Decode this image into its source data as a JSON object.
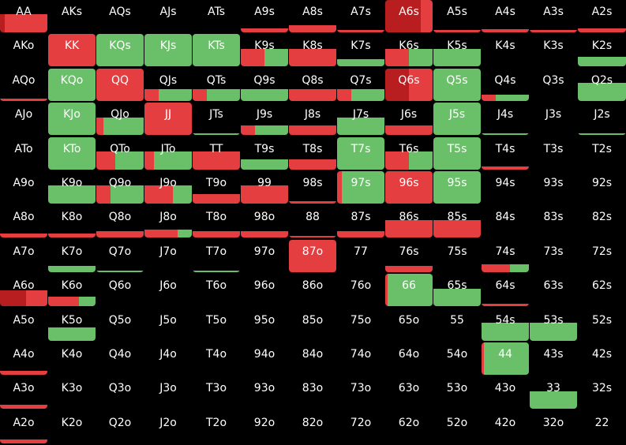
{
  "colors": {
    "call": "#6abf69",
    "raise": "#e53e40",
    "raise_dark": "#b81e20",
    "background": "#000000",
    "text": "#ffffff"
  },
  "grid": {
    "rows": [
      [
        "AA",
        "AKs",
        "AQs",
        "AJs",
        "ATs",
        "A9s",
        "A8s",
        "A7s",
        "A6s",
        "A5s",
        "A4s",
        "A3s",
        "A2s"
      ],
      [
        "AKo",
        "KK",
        "KQs",
        "KJs",
        "KTs",
        "K9s",
        "K8s",
        "K7s",
        "K6s",
        "K5s",
        "K4s",
        "K3s",
        "K2s"
      ],
      [
        "AQo",
        "KQo",
        "QQ",
        "QJs",
        "QTs",
        "Q9s",
        "Q8s",
        "Q7s",
        "Q6s",
        "Q5s",
        "Q4s",
        "Q3s",
        "Q2s"
      ],
      [
        "AJo",
        "KJo",
        "QJo",
        "JJ",
        "JTs",
        "J9s",
        "J8s",
        "J7s",
        "J6s",
        "J5s",
        "J4s",
        "J3s",
        "J2s"
      ],
      [
        "ATo",
        "KTo",
        "QTo",
        "JTo",
        "TT",
        "T9s",
        "T8s",
        "T7s",
        "T6s",
        "T5s",
        "T4s",
        "T3s",
        "T2s"
      ],
      [
        "A9o",
        "K9o",
        "Q9o",
        "J9o",
        "T9o",
        "99",
        "98s",
        "97s",
        "96s",
        "95s",
        "94s",
        "93s",
        "92s"
      ],
      [
        "A8o",
        "K8o",
        "Q8o",
        "J8o",
        "T8o",
        "98o",
        "88",
        "87s",
        "86s",
        "85s",
        "84s",
        "83s",
        "82s"
      ],
      [
        "A7o",
        "K7o",
        "Q7o",
        "J7o",
        "T7o",
        "97o",
        "87o",
        "77",
        "76s",
        "75s",
        "74s",
        "73s",
        "72s"
      ],
      [
        "A6o",
        "K6o",
        "Q6o",
        "J6o",
        "T6o",
        "96o",
        "86o",
        "76o",
        "66",
        "65s",
        "64s",
        "63s",
        "62s"
      ],
      [
        "A5o",
        "K5o",
        "Q5o",
        "J5o",
        "T5o",
        "95o",
        "85o",
        "75o",
        "65o",
        "55",
        "54s",
        "53s",
        "52s"
      ],
      [
        "A4o",
        "K4o",
        "Q4o",
        "J4o",
        "T4o",
        "94o",
        "84o",
        "74o",
        "64o",
        "54o",
        "44",
        "43s",
        "42s"
      ],
      [
        "A3o",
        "K3o",
        "Q3o",
        "J3o",
        "T3o",
        "93o",
        "83o",
        "73o",
        "63o",
        "53o",
        "43o",
        "33",
        "32s"
      ],
      [
        "A2o",
        "K2o",
        "Q2o",
        "J2o",
        "T2o",
        "92o",
        "82o",
        "72o",
        "62o",
        "52o",
        "42o",
        "32o",
        "22"
      ]
    ],
    "frequencies": {
      "AA": {
        "fill": 0.55,
        "segments": [
          {
            "action": "raise_dark",
            "share": 0.1
          },
          {
            "action": "raise",
            "share": 0.9
          }
        ]
      },
      "A9s": {
        "fill": 0.12,
        "segments": [
          {
            "action": "raise",
            "share": 1
          }
        ]
      },
      "A8s": {
        "fill": 0.22,
        "segments": [
          {
            "action": "raise",
            "share": 1
          }
        ]
      },
      "A7s": {
        "fill": 0.08,
        "segments": [
          {
            "action": "raise",
            "share": 1
          }
        ]
      },
      "A6s": {
        "fill": 1.0,
        "segments": [
          {
            "action": "raise_dark",
            "share": 0.75
          },
          {
            "action": "raise",
            "share": 0.25
          }
        ]
      },
      "A5s": {
        "fill": 0.08,
        "segments": [
          {
            "action": "raise",
            "share": 1
          }
        ]
      },
      "A4s": {
        "fill": 0.1,
        "segments": [
          {
            "action": "raise",
            "share": 1
          }
        ]
      },
      "A3s": {
        "fill": 0.08,
        "segments": [
          {
            "action": "raise",
            "share": 1
          }
        ]
      },
      "A2s": {
        "fill": 0.12,
        "segments": [
          {
            "action": "raise",
            "share": 1
          }
        ]
      },
      "KK": {
        "fill": 1.0,
        "segments": [
          {
            "action": "raise",
            "share": 1
          }
        ]
      },
      "KQs": {
        "fill": 1.0,
        "segments": [
          {
            "action": "call",
            "share": 1
          }
        ]
      },
      "KJs": {
        "fill": 1.0,
        "segments": [
          {
            "action": "call",
            "share": 1
          }
        ]
      },
      "KTs": {
        "fill": 1.0,
        "segments": [
          {
            "action": "call",
            "share": 1
          }
        ]
      },
      "K9s": {
        "fill": 0.55,
        "segments": [
          {
            "action": "raise",
            "share": 0.5
          },
          {
            "action": "call",
            "share": 0.5
          }
        ]
      },
      "K8s": {
        "fill": 0.55,
        "segments": [
          {
            "action": "raise",
            "share": 1
          }
        ]
      },
      "K7s": {
        "fill": 0.22,
        "segments": [
          {
            "action": "call",
            "share": 1
          }
        ]
      },
      "K6s": {
        "fill": 0.55,
        "segments": [
          {
            "action": "raise",
            "share": 0.5
          },
          {
            "action": "call",
            "share": 0.5
          }
        ]
      },
      "K5s": {
        "fill": 0.55,
        "segments": [
          {
            "action": "call",
            "share": 1
          }
        ]
      },
      "K2s": {
        "fill": 0.3,
        "segments": [
          {
            "action": "call",
            "share": 1
          }
        ]
      },
      "AQo": {
        "fill": 0.08,
        "segments": [
          {
            "action": "raise",
            "share": 1
          }
        ]
      },
      "KQo": {
        "fill": 1.0,
        "segments": [
          {
            "action": "call",
            "share": 1
          }
        ]
      },
      "QQ": {
        "fill": 1.0,
        "segments": [
          {
            "action": "raise",
            "share": 1
          }
        ]
      },
      "QJs": {
        "fill": 0.35,
        "segments": [
          {
            "action": "raise",
            "share": 0.3
          },
          {
            "action": "call",
            "share": 0.7
          }
        ]
      },
      "QTs": {
        "fill": 0.35,
        "segments": [
          {
            "action": "raise",
            "share": 0.3
          },
          {
            "action": "call",
            "share": 0.7
          }
        ]
      },
      "Q9s": {
        "fill": 0.35,
        "segments": [
          {
            "action": "call",
            "share": 1
          }
        ]
      },
      "Q8s": {
        "fill": 0.35,
        "segments": [
          {
            "action": "raise",
            "share": 1
          }
        ]
      },
      "Q7s": {
        "fill": 0.35,
        "segments": [
          {
            "action": "raise",
            "share": 0.3
          },
          {
            "action": "call",
            "share": 0.7
          }
        ]
      },
      "Q6s": {
        "fill": 1.0,
        "segments": [
          {
            "action": "raise_dark",
            "share": 0.5
          },
          {
            "action": "raise",
            "share": 0.5
          }
        ]
      },
      "Q5s": {
        "fill": 1.0,
        "segments": [
          {
            "action": "call",
            "share": 1
          }
        ]
      },
      "Q4s": {
        "fill": 0.2,
        "segments": [
          {
            "action": "raise",
            "share": 0.3
          },
          {
            "action": "call",
            "share": 0.7
          }
        ]
      },
      "Q2s": {
        "fill": 0.55,
        "segments": [
          {
            "action": "call",
            "share": 1
          }
        ]
      },
      "KJo": {
        "fill": 1.0,
        "segments": [
          {
            "action": "call",
            "share": 1
          }
        ]
      },
      "QJo": {
        "fill": 0.55,
        "segments": [
          {
            "action": "raise",
            "share": 0.15
          },
          {
            "action": "call",
            "share": 0.85
          }
        ]
      },
      "JJ": {
        "fill": 1.0,
        "segments": [
          {
            "action": "raise",
            "share": 1
          }
        ]
      },
      "JTs": {
        "fill": 0.05,
        "segments": [
          {
            "action": "call",
            "share": 1
          }
        ]
      },
      "J9s": {
        "fill": 0.3,
        "segments": [
          {
            "action": "raise",
            "share": 0.3
          },
          {
            "action": "call",
            "share": 0.7
          }
        ]
      },
      "J8s": {
        "fill": 0.3,
        "segments": [
          {
            "action": "raise",
            "share": 1
          }
        ]
      },
      "J7s": {
        "fill": 0.55,
        "segments": [
          {
            "action": "call",
            "share": 1
          }
        ]
      },
      "J6s": {
        "fill": 0.3,
        "segments": [
          {
            "action": "raise",
            "share": 1
          }
        ]
      },
      "J5s": {
        "fill": 1.0,
        "segments": [
          {
            "action": "call",
            "share": 1
          }
        ]
      },
      "J4s": {
        "fill": 0.05,
        "segments": [
          {
            "action": "call",
            "share": 1
          }
        ]
      },
      "J2s": {
        "fill": 0.05,
        "segments": [
          {
            "action": "call",
            "share": 1
          }
        ]
      },
      "KTo": {
        "fill": 1.0,
        "segments": [
          {
            "action": "call",
            "share": 1
          }
        ]
      },
      "QTo": {
        "fill": 0.55,
        "segments": [
          {
            "action": "raise",
            "share": 0.4
          },
          {
            "action": "call",
            "share": 0.6
          }
        ]
      },
      "JTo": {
        "fill": 0.55,
        "segments": [
          {
            "action": "raise",
            "share": 0.2
          },
          {
            "action": "call",
            "share": 0.8
          }
        ]
      },
      "TT": {
        "fill": 0.55,
        "segments": [
          {
            "action": "raise",
            "share": 1
          }
        ]
      },
      "T9s": {
        "fill": 0.3,
        "segments": [
          {
            "action": "call",
            "share": 1
          }
        ]
      },
      "T8s": {
        "fill": 0.3,
        "segments": [
          {
            "action": "raise",
            "share": 1
          }
        ]
      },
      "T7s": {
        "fill": 1.0,
        "segments": [
          {
            "action": "call",
            "share": 1
          }
        ]
      },
      "T6s": {
        "fill": 0.55,
        "segments": [
          {
            "action": "raise",
            "share": 0.5
          },
          {
            "action": "call",
            "share": 0.5
          }
        ]
      },
      "T5s": {
        "fill": 1.0,
        "segments": [
          {
            "action": "call",
            "share": 1
          }
        ]
      },
      "T4s": {
        "fill": 0.08,
        "segments": [
          {
            "action": "raise",
            "share": 1
          }
        ]
      },
      "K9o": {
        "fill": 0.55,
        "segments": [
          {
            "action": "call",
            "share": 1
          }
        ]
      },
      "Q9o": {
        "fill": 0.55,
        "segments": [
          {
            "action": "raise",
            "share": 0.3
          },
          {
            "action": "call",
            "share": 0.7
          }
        ]
      },
      "J9o": {
        "fill": 0.55,
        "segments": [
          {
            "action": "raise",
            "share": 0.6
          },
          {
            "action": "call",
            "share": 0.4
          }
        ]
      },
      "T9o": {
        "fill": 0.3,
        "segments": [
          {
            "action": "raise",
            "share": 1
          }
        ]
      },
      "99": {
        "fill": 0.55,
        "segments": [
          {
            "action": "raise",
            "share": 1
          }
        ]
      },
      "98s": {
        "fill": 0.08,
        "segments": [
          {
            "action": "raise",
            "share": 1
          }
        ]
      },
      "97s": {
        "fill": 1.0,
        "segments": [
          {
            "action": "raise",
            "share": 0.1
          },
          {
            "action": "call",
            "share": 0.9
          }
        ]
      },
      "96s": {
        "fill": 1.0,
        "segments": [
          {
            "action": "raise",
            "share": 1
          }
        ]
      },
      "95s": {
        "fill": 1.0,
        "segments": [
          {
            "action": "call",
            "share": 1
          }
        ]
      },
      "A8o": {
        "fill": 0.12,
        "segments": [
          {
            "action": "raise",
            "share": 1
          }
        ]
      },
      "K8o": {
        "fill": 0.12,
        "segments": [
          {
            "action": "raise",
            "share": 1
          }
        ]
      },
      "Q8o": {
        "fill": 0.2,
        "segments": [
          {
            "action": "raise",
            "share": 1
          }
        ]
      },
      "J8o": {
        "fill": 0.25,
        "segments": [
          {
            "action": "raise",
            "share": 0.7
          },
          {
            "action": "call",
            "share": 0.3
          }
        ]
      },
      "T8o": {
        "fill": 0.2,
        "segments": [
          {
            "action": "raise",
            "share": 1
          }
        ]
      },
      "98o": {
        "fill": 0.2,
        "segments": [
          {
            "action": "raise",
            "share": 1
          }
        ]
      },
      "88": {
        "fill": 0.05,
        "segments": [
          {
            "action": "raise",
            "share": 1
          }
        ]
      },
      "87s": {
        "fill": 0.2,
        "segments": [
          {
            "action": "raise",
            "share": 1
          }
        ]
      },
      "86s": {
        "fill": 0.55,
        "segments": [
          {
            "action": "raise",
            "share": 1
          }
        ]
      },
      "85s": {
        "fill": 0.55,
        "segments": [
          {
            "action": "raise",
            "share": 1
          }
        ]
      },
      "K7o": {
        "fill": 0.2,
        "segments": [
          {
            "action": "call",
            "share": 1
          }
        ]
      },
      "Q7o": {
        "fill": 0.05,
        "segments": [
          {
            "action": "call",
            "share": 1
          }
        ]
      },
      "T7o": {
        "fill": 0.05,
        "segments": [
          {
            "action": "call",
            "share": 1
          }
        ]
      },
      "87o": {
        "fill": 1.0,
        "segments": [
          {
            "action": "raise",
            "share": 1
          }
        ]
      },
      "76s": {
        "fill": 0.2,
        "segments": [
          {
            "action": "raise",
            "share": 1
          }
        ]
      },
      "74s": {
        "fill": 0.25,
        "segments": [
          {
            "action": "raise",
            "share": 0.6
          },
          {
            "action": "call",
            "share": 0.4
          }
        ]
      },
      "A6o": {
        "fill": 0.5,
        "segments": [
          {
            "action": "raise_dark",
            "share": 0.55
          },
          {
            "action": "raise",
            "share": 0.45
          }
        ]
      },
      "K6o": {
        "fill": 0.3,
        "segments": [
          {
            "action": "raise",
            "share": 0.65
          },
          {
            "action": "call",
            "share": 0.35
          }
        ]
      },
      "66": {
        "fill": 1.0,
        "segments": [
          {
            "action": "raise",
            "share": 0.05
          },
          {
            "action": "call",
            "share": 0.95
          }
        ]
      },
      "65s": {
        "fill": 0.55,
        "segments": [
          {
            "action": "call",
            "share": 1
          }
        ]
      },
      "64s": {
        "fill": 0.08,
        "segments": [
          {
            "action": "raise",
            "share": 1
          }
        ]
      },
      "K5o": {
        "fill": 0.4,
        "segments": [
          {
            "action": "call",
            "share": 1
          }
        ]
      },
      "54s": {
        "fill": 0.55,
        "segments": [
          {
            "action": "call",
            "share": 1
          }
        ]
      },
      "53s": {
        "fill": 0.55,
        "segments": [
          {
            "action": "call",
            "share": 1
          }
        ]
      },
      "A4o": {
        "fill": 0.12,
        "segments": [
          {
            "action": "raise",
            "share": 1
          }
        ]
      },
      "44": {
        "fill": 1.0,
        "segments": [
          {
            "action": "raise",
            "share": 0.05
          },
          {
            "action": "call",
            "share": 0.95
          }
        ]
      },
      "A3o": {
        "fill": 0.12,
        "segments": [
          {
            "action": "raise",
            "share": 1
          }
        ]
      },
      "33": {
        "fill": 0.55,
        "segments": [
          {
            "action": "call",
            "share": 1
          }
        ]
      },
      "A2o": {
        "fill": 0.12,
        "segments": [
          {
            "action": "raise",
            "share": 1
          }
        ]
      }
    }
  }
}
